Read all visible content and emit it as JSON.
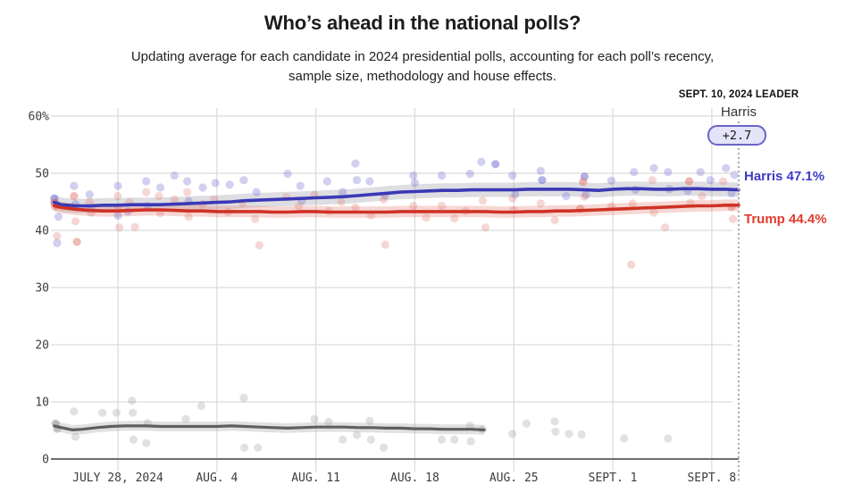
{
  "header": {
    "title": "Who’s ahead in the national polls?",
    "subtitle_line1": "Updating average for each candidate in 2024 presidential polls, accounting for each poll’s recency,",
    "subtitle_line2": "sample size, methodology and house effects."
  },
  "leader": {
    "heading": "SEPT. 10, 2024 LEADER",
    "name": "Harris",
    "margin_label": "+2.7"
  },
  "end_labels": {
    "harris": "Harris 47.1%",
    "trump": "Trump 44.4%"
  },
  "colors": {
    "harris_line": "#3b38b5",
    "harris_label": "#3e3ac7",
    "harris_dot": "#6765cd",
    "harris_band": "rgba(135,135,150,0.28)",
    "trump_line": "#cf3226",
    "trump_label": "#e23b2e",
    "trump_dot": "#e07a70",
    "trump_band": "rgba(224,122,110,0.30)",
    "gray_line": "#5f5f5f",
    "gray_dot": "#9b9b9b",
    "gray_band": "rgba(170,170,170,0.35)",
    "grid": "#dadada",
    "axis": "#6e6e6e",
    "dotted_line": "#a8a8a8",
    "pill_bg": "#e4e3f8",
    "pill_border": "#6a64c8"
  },
  "chart_data": {
    "type": "line",
    "title": "Who’s ahead in the national polls?",
    "x_axis": {
      "tick_labels": [
        "JULY 28, 2024",
        "AUG. 4",
        "AUG. 11",
        "AUG. 18",
        "AUG. 25",
        "SEPT. 1",
        "SEPT. 8"
      ],
      "tick_days": [
        0,
        7,
        14,
        21,
        28,
        35,
        42
      ]
    },
    "y_axis": {
      "tick_labels": [
        "60%",
        "50",
        "40",
        "30",
        "20",
        "10",
        "0"
      ],
      "tick_values": [
        60,
        50,
        40,
        30,
        20,
        10,
        0
      ],
      "range": [
        0,
        60
      ],
      "grid": true
    },
    "as_of_day": 43.9,
    "series": [
      {
        "id": "harris",
        "end_label": "Harris 47.1%",
        "final_value": 47.1,
        "band_halfwidth": 1.25,
        "points": [
          [
            -4.5,
            44.9
          ],
          [
            -4,
            44.5
          ],
          [
            -3,
            44.3
          ],
          [
            -2,
            44.3
          ],
          [
            -1,
            44.4
          ],
          [
            0,
            44.4
          ],
          [
            1,
            44.5
          ],
          [
            2,
            44.5
          ],
          [
            3,
            44.5
          ],
          [
            4,
            44.6
          ],
          [
            5,
            44.7
          ],
          [
            6,
            44.8
          ],
          [
            7,
            44.9
          ],
          [
            8,
            45.0
          ],
          [
            9,
            45.2
          ],
          [
            10,
            45.3
          ],
          [
            11,
            45.4
          ],
          [
            12,
            45.5
          ],
          [
            13,
            45.6
          ],
          [
            14,
            45.7
          ],
          [
            15,
            45.8
          ],
          [
            16,
            45.9
          ],
          [
            17,
            46.1
          ],
          [
            18,
            46.3
          ],
          [
            19,
            46.5
          ],
          [
            20,
            46.7
          ],
          [
            21,
            46.8
          ],
          [
            22,
            46.9
          ],
          [
            23,
            47.0
          ],
          [
            24,
            47.0
          ],
          [
            25,
            47.1
          ],
          [
            26,
            47.1
          ],
          [
            27,
            47.1
          ],
          [
            28,
            47.1
          ],
          [
            29,
            47.2
          ],
          [
            30,
            47.2
          ],
          [
            31,
            47.2
          ],
          [
            32,
            47.2
          ],
          [
            33,
            47.1
          ],
          [
            34,
            47.0
          ],
          [
            35,
            47.2
          ],
          [
            36,
            47.3
          ],
          [
            37,
            47.3
          ],
          [
            38,
            47.2
          ],
          [
            39,
            47.2
          ],
          [
            40,
            47.3
          ],
          [
            41,
            47.3
          ],
          [
            42,
            47.2
          ],
          [
            43,
            47.2
          ],
          [
            43.9,
            47.1
          ]
        ]
      },
      {
        "id": "trump",
        "end_label": "Trump 44.4%",
        "final_value": 44.4,
        "band_halfwidth": 1.0,
        "points": [
          [
            -4.5,
            44.3
          ],
          [
            -4,
            44.0
          ],
          [
            -3,
            43.7
          ],
          [
            -2,
            43.5
          ],
          [
            -1,
            43.4
          ],
          [
            0,
            43.4
          ],
          [
            1,
            43.5
          ],
          [
            2,
            43.6
          ],
          [
            3,
            43.6
          ],
          [
            4,
            43.5
          ],
          [
            5,
            43.4
          ],
          [
            6,
            43.4
          ],
          [
            7,
            43.3
          ],
          [
            8,
            43.3
          ],
          [
            9,
            43.3
          ],
          [
            10,
            43.3
          ],
          [
            11,
            43.2
          ],
          [
            12,
            43.2
          ],
          [
            13,
            43.3
          ],
          [
            14,
            43.3
          ],
          [
            15,
            43.2
          ],
          [
            16,
            43.2
          ],
          [
            17,
            43.2
          ],
          [
            18,
            43.2
          ],
          [
            19,
            43.2
          ],
          [
            20,
            43.3
          ],
          [
            21,
            43.3
          ],
          [
            22,
            43.3
          ],
          [
            23,
            43.3
          ],
          [
            24,
            43.3
          ],
          [
            25,
            43.3
          ],
          [
            26,
            43.3
          ],
          [
            27,
            43.2
          ],
          [
            28,
            43.2
          ],
          [
            29,
            43.3
          ],
          [
            30,
            43.3
          ],
          [
            31,
            43.4
          ],
          [
            32,
            43.4
          ],
          [
            33,
            43.5
          ],
          [
            34,
            43.6
          ],
          [
            35,
            43.7
          ],
          [
            36,
            43.8
          ],
          [
            37,
            43.9
          ],
          [
            38,
            44.0
          ],
          [
            39,
            44.1
          ],
          [
            40,
            44.2
          ],
          [
            41,
            44.3
          ],
          [
            42,
            44.3
          ],
          [
            43,
            44.4
          ],
          [
            43.9,
            44.4
          ]
        ]
      },
      {
        "id": "gray",
        "final_value": 5.1,
        "band_halfwidth": 0.85,
        "points": [
          [
            -4.5,
            5.8
          ],
          [
            -4,
            5.5
          ],
          [
            -3.2,
            5.1
          ],
          [
            -2.5,
            5.2
          ],
          [
            -1.5,
            5.5
          ],
          [
            -0.5,
            5.7
          ],
          [
            0.5,
            5.8
          ],
          [
            2,
            5.8
          ],
          [
            3,
            5.7
          ],
          [
            4,
            5.7
          ],
          [
            5,
            5.7
          ],
          [
            6,
            5.7
          ],
          [
            7,
            5.7
          ],
          [
            8,
            5.8
          ],
          [
            9,
            5.7
          ],
          [
            10,
            5.6
          ],
          [
            11,
            5.5
          ],
          [
            12,
            5.4
          ],
          [
            13,
            5.5
          ],
          [
            14,
            5.6
          ],
          [
            15,
            5.6
          ],
          [
            16,
            5.6
          ],
          [
            17,
            5.5
          ],
          [
            18,
            5.5
          ],
          [
            19,
            5.4
          ],
          [
            20,
            5.4
          ],
          [
            21,
            5.3
          ],
          [
            22,
            5.3
          ],
          [
            23,
            5.2
          ],
          [
            24,
            5.2
          ],
          [
            25,
            5.2
          ],
          [
            25.9,
            5.1
          ]
        ]
      }
    ],
    "scatter": {
      "harris": [
        [
          -4.5,
          45.6,
          0.55
        ],
        [
          -4.45,
          44.8,
          0.5
        ],
        [
          -4.2,
          42.4
        ],
        [
          -4.3,
          37.8
        ],
        [
          -3.1,
          47.8
        ],
        [
          -3,
          44.6
        ],
        [
          -2,
          46.3
        ],
        [
          -1.9,
          43.9
        ],
        [
          0,
          47.8
        ],
        [
          0,
          42.6
        ],
        [
          0.7,
          43.3
        ],
        [
          2,
          48.6
        ],
        [
          2.1,
          44.3
        ],
        [
          3,
          47.5
        ],
        [
          4,
          49.6
        ],
        [
          4.9,
          48.6
        ],
        [
          5,
          45.1
        ],
        [
          6,
          47.5
        ],
        [
          6.9,
          48.3
        ],
        [
          7.9,
          48.0
        ],
        [
          8.9,
          48.8
        ],
        [
          9.8,
          46.7
        ],
        [
          12,
          49.9
        ],
        [
          12.9,
          47.8
        ],
        [
          13,
          45.2
        ],
        [
          14.8,
          48.6
        ],
        [
          15.9,
          46.7
        ],
        [
          16.8,
          51.7
        ],
        [
          16.9,
          48.8
        ],
        [
          17.8,
          48.6
        ],
        [
          18.9,
          46.1
        ],
        [
          20.9,
          49.6
        ],
        [
          21,
          48.3
        ],
        [
          22.9,
          49.6
        ],
        [
          24.9,
          49.9
        ],
        [
          25.7,
          52.0
        ],
        [
          26.7,
          51.6,
          0.5
        ],
        [
          27.9,
          49.6
        ],
        [
          28.1,
          46.3
        ],
        [
          29.9,
          50.4
        ],
        [
          30,
          48.8,
          0.5
        ],
        [
          31.7,
          46.0
        ],
        [
          33,
          49.4,
          0.5
        ],
        [
          33.1,
          46.2
        ],
        [
          34.9,
          48.7
        ],
        [
          36.5,
          50.2
        ],
        [
          36.6,
          47.1
        ],
        [
          37.9,
          50.9
        ],
        [
          38.9,
          50.2
        ],
        [
          39,
          47.2
        ],
        [
          40.3,
          46.9
        ],
        [
          41.2,
          50.2
        ],
        [
          41.9,
          48.8
        ],
        [
          43,
          50.9
        ],
        [
          43.4,
          46.5
        ],
        [
          43.6,
          49.7
        ]
      ],
      "trump": [
        [
          -4.5,
          44.9,
          0.6
        ],
        [
          -4.45,
          44.2,
          0.5
        ],
        [
          -4.3,
          39.0
        ],
        [
          -3.1,
          46.0,
          0.5
        ],
        [
          -3,
          41.6
        ],
        [
          -2.9,
          38.0,
          0.5
        ],
        [
          -2,
          45.0
        ],
        [
          -1.9,
          43.1
        ],
        [
          0,
          46.0
        ],
        [
          0,
          44.1
        ],
        [
          0.1,
          40.5
        ],
        [
          0.8,
          44.9
        ],
        [
          1.2,
          40.6
        ],
        [
          2,
          46.7
        ],
        [
          2.9,
          46.0
        ],
        [
          3,
          43.0
        ],
        [
          4,
          45.4
        ],
        [
          4.9,
          46.7
        ],
        [
          5,
          42.4
        ],
        [
          6,
          44.6
        ],
        [
          6.8,
          45.4
        ],
        [
          7.8,
          43.2
        ],
        [
          8.8,
          44.8
        ],
        [
          9.7,
          42.0
        ],
        [
          10,
          37.4
        ],
        [
          11.9,
          45.8
        ],
        [
          12.8,
          44.2
        ],
        [
          13.9,
          46.2
        ],
        [
          14.9,
          43.4
        ],
        [
          15.8,
          45.0
        ],
        [
          16.8,
          44.0
        ],
        [
          17.9,
          42.6
        ],
        [
          18.8,
          45.4
        ],
        [
          18.9,
          37.5
        ],
        [
          20.9,
          44.3
        ],
        [
          21.8,
          42.2
        ],
        [
          22.9,
          44.3
        ],
        [
          23.8,
          42.1
        ],
        [
          24.6,
          43.4
        ],
        [
          25.8,
          45.2
        ],
        [
          26,
          40.5
        ],
        [
          27.9,
          45.6
        ],
        [
          28,
          43.6
        ],
        [
          29.9,
          44.7
        ],
        [
          30.9,
          41.8
        ],
        [
          32.7,
          43.8,
          0.5
        ],
        [
          32.9,
          48.5,
          0.55
        ],
        [
          33,
          45.9
        ],
        [
          34.9,
          44.2
        ],
        [
          36.3,
          34.0
        ],
        [
          36.4,
          44.7
        ],
        [
          37.8,
          48.8
        ],
        [
          37.9,
          43.1
        ],
        [
          38.7,
          40.5
        ],
        [
          40.4,
          48.6,
          0.55
        ],
        [
          40.5,
          44.8
        ],
        [
          41.3,
          46.0
        ],
        [
          42.8,
          48.6
        ],
        [
          43.4,
          44.1,
          0.5
        ],
        [
          43.5,
          42.0
        ]
      ],
      "gray": [
        [
          -4.4,
          6.2,
          0.6
        ],
        [
          -4.3,
          5.3,
          0.5
        ],
        [
          -3.1,
          8.3
        ],
        [
          -3,
          3.9
        ],
        [
          -1.1,
          8.1
        ],
        [
          -0.1,
          8.1
        ],
        [
          1,
          10.2
        ],
        [
          1.05,
          8.1
        ],
        [
          1.1,
          3.4
        ],
        [
          2,
          2.8
        ],
        [
          2.1,
          6.3
        ],
        [
          4.8,
          7.0
        ],
        [
          5.9,
          9.3
        ],
        [
          8.9,
          10.7
        ],
        [
          8.95,
          2.0
        ],
        [
          9.9,
          2.0
        ],
        [
          13.9,
          7.0
        ],
        [
          14.9,
          6.5
        ],
        [
          15.9,
          3.4
        ],
        [
          16.9,
          4.2
        ],
        [
          17.8,
          6.7
        ],
        [
          17.9,
          3.4
        ],
        [
          18.8,
          2.0
        ],
        [
          22.9,
          3.4
        ],
        [
          23.8,
          3.4
        ],
        [
          24.9,
          5.8
        ],
        [
          24.95,
          3.1
        ],
        [
          25.8,
          5.2
        ],
        [
          27.9,
          4.4
        ],
        [
          28.9,
          6.2
        ],
        [
          30.9,
          6.6
        ],
        [
          30.95,
          4.8
        ],
        [
          31.9,
          4.4
        ],
        [
          32.8,
          4.3
        ],
        [
          35.8,
          3.6
        ],
        [
          38.9,
          3.6
        ]
      ]
    }
  }
}
